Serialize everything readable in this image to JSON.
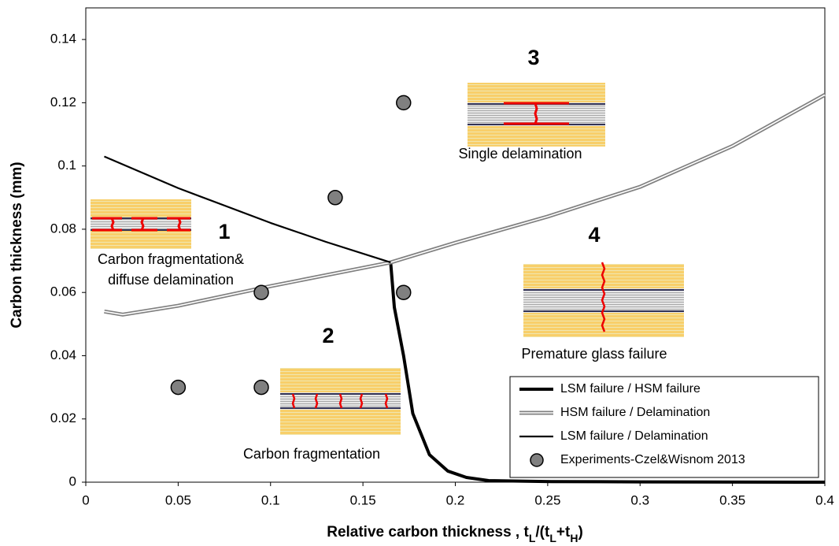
{
  "chart_data": {
    "type": "line",
    "x_label": [
      "Relative carbon thickness , t",
      "L",
      "/(t",
      "L",
      "+t",
      "H",
      ")"
    ],
    "y_label": "Carbon thickness (mm)",
    "xlim": [
      0,
      0.4
    ],
    "xticks": [
      0,
      0.05,
      0.1,
      0.15,
      0.2,
      0.25,
      0.3,
      0.35,
      0.4
    ],
    "ylim": [
      0,
      0.15
    ],
    "yticks": [
      0,
      0.02,
      0.04,
      0.06,
      0.08,
      0.1,
      0.12,
      0.14
    ],
    "series": [
      {
        "name": "LSM failure / HSM failure",
        "type": "line",
        "color": "#000000",
        "x": [
          0.165,
          0.167,
          0.172,
          0.177,
          0.186,
          0.196,
          0.206,
          0.218,
          0.252,
          0.3,
          0.4
        ],
        "values": [
          0.0695,
          0.0553,
          0.04,
          0.0217,
          0.0087,
          0.0035,
          0.0015,
          0.0005,
          0.0002,
          0.0001,
          0
        ]
      },
      {
        "name": "HSM failure / Delamination",
        "type": "line",
        "color": "#808080",
        "x": [
          0.01,
          0.02,
          0.05,
          0.1,
          0.165,
          0.2,
          0.25,
          0.3,
          0.35,
          0.4
        ],
        "values": [
          0.054,
          0.053,
          0.0558,
          0.062,
          0.0695,
          0.0757,
          0.084,
          0.0934,
          0.1063,
          0.1225
        ]
      },
      {
        "name": "LSM failure / Delamination",
        "type": "line",
        "color": "#000000",
        "x": [
          0.01,
          0.05,
          0.1,
          0.13,
          0.165
        ],
        "values": [
          0.103,
          0.093,
          0.082,
          0.076,
          0.0695
        ]
      },
      {
        "name": "Experiments-Czel&Wisnom 2013",
        "type": "scatter",
        "color": "#808080",
        "x": [
          0.05,
          0.095,
          0.095,
          0.135,
          0.172,
          0.172
        ],
        "values": [
          0.03,
          0.03,
          0.06,
          0.09,
          0.12,
          0.06
        ]
      }
    ],
    "regions": [
      {
        "number": "1",
        "label": [
          "Carbon fragmentation&",
          "diffuse delamination"
        ]
      },
      {
        "number": "2",
        "label": [
          "Carbon fragmentation"
        ]
      },
      {
        "number": "3",
        "label": [
          "Single delamination"
        ]
      },
      {
        "number": "4",
        "label": [
          "Premature glass failure"
        ]
      }
    ]
  }
}
